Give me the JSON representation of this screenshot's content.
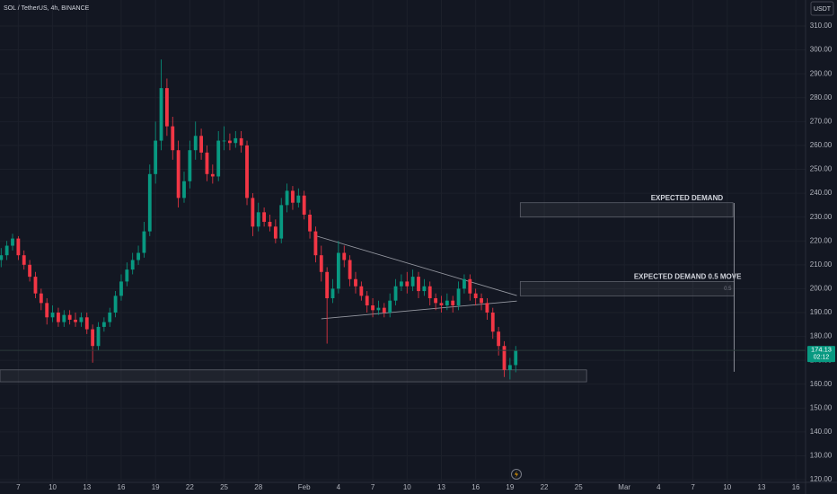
{
  "chart_data": {
    "type": "candlestick",
    "title": "SOL / TetherUS, 4h, BINANCE",
    "currency": "USDT",
    "countdown": "02:12",
    "up_color": "#089981",
    "down_color": "#f23645",
    "grid": true,
    "xlim": [
      5.4,
      75.85
    ],
    "ylim": [
      118.9,
      320.9
    ],
    "xticks": [
      {
        "value": 7,
        "label": "7"
      },
      {
        "value": 10,
        "label": "10"
      },
      {
        "value": 13,
        "label": "13"
      },
      {
        "value": 16,
        "label": "16"
      },
      {
        "value": 19,
        "label": "19"
      },
      {
        "value": 22,
        "label": "22"
      },
      {
        "value": 25,
        "label": "25"
      },
      {
        "value": 28,
        "label": "28"
      },
      {
        "value": 32,
        "label": "Feb"
      },
      {
        "value": 35,
        "label": "4"
      },
      {
        "value": 38,
        "label": "7"
      },
      {
        "value": 41,
        "label": "10"
      },
      {
        "value": 44,
        "label": "13"
      },
      {
        "value": 47,
        "label": "16"
      },
      {
        "value": 50,
        "label": "19"
      },
      {
        "value": 53,
        "label": "22"
      },
      {
        "value": 56,
        "label": "25"
      },
      {
        "value": 60,
        "label": "Mar"
      },
      {
        "value": 63,
        "label": "4"
      },
      {
        "value": 66,
        "label": "7"
      },
      {
        "value": 69,
        "label": "10"
      },
      {
        "value": 72,
        "label": "13"
      },
      {
        "value": 75,
        "label": "16"
      }
    ],
    "yticks": [
      {
        "value": 120,
        "label": "120.00"
      },
      {
        "value": 130,
        "label": "130.00"
      },
      {
        "value": 140,
        "label": "140.00"
      },
      {
        "value": 150,
        "label": "150.00"
      },
      {
        "value": 160,
        "label": "160.00"
      },
      {
        "value": 170,
        "label": "170.00"
      },
      {
        "value": 180,
        "label": "180.00"
      },
      {
        "value": 190,
        "label": "190.00"
      },
      {
        "value": 200,
        "label": "200.00"
      },
      {
        "value": 210,
        "label": "210.00"
      },
      {
        "value": 220,
        "label": "220.00"
      },
      {
        "value": 230,
        "label": "230.00"
      },
      {
        "value": 240,
        "label": "240.00"
      },
      {
        "value": 250,
        "label": "250.00"
      },
      {
        "value": 260,
        "label": "260.00"
      },
      {
        "value": 270,
        "label": "270.00"
      },
      {
        "value": 280,
        "label": "280.00"
      },
      {
        "value": 290,
        "label": "290.00"
      },
      {
        "value": 300,
        "label": "300.00"
      },
      {
        "value": 310,
        "label": "310.00"
      }
    ],
    "x": [
      5.5,
      6,
      6.5,
      7,
      7.5,
      8,
      8.5,
      9,
      9.5,
      10,
      10.5,
      11,
      11.5,
      12,
      12.5,
      13,
      13.5,
      14,
      14.5,
      15,
      15.5,
      16,
      16.5,
      17,
      17.5,
      18,
      18.5,
      19,
      19.5,
      20,
      20.5,
      21,
      21.5,
      22,
      22.5,
      23,
      23.5,
      24,
      24.5,
      25,
      25.5,
      26,
      26.5,
      27,
      27.5,
      28,
      28.5,
      29,
      29.5,
      30,
      30.5,
      31,
      31.5,
      32,
      32.5,
      33,
      33.5,
      34,
      34.5,
      35,
      35.5,
      36,
      36.5,
      37,
      37.5,
      38,
      38.5,
      39,
      39.5,
      40,
      40.5,
      41,
      41.5,
      42,
      42.5,
      43,
      43.5,
      44,
      44.5,
      45,
      45.5,
      46,
      46.5,
      47,
      47.5,
      48,
      48.5,
      49,
      49.5,
      50,
      50.5
    ],
    "open": [
      212,
      214,
      218,
      221,
      214,
      210,
      205,
      198,
      194,
      188,
      190,
      186,
      189,
      187,
      186,
      188,
      183,
      176,
      184,
      186,
      190,
      197,
      203,
      208,
      212,
      215,
      224,
      248,
      262,
      284,
      268,
      258,
      238,
      245,
      258,
      264,
      257,
      248,
      247,
      262,
      262,
      261,
      263,
      260,
      238,
      226,
      232,
      228,
      226,
      221,
      235,
      241,
      236,
      239,
      231,
      224,
      214,
      207,
      196,
      200,
      215,
      212,
      204,
      201,
      197,
      193,
      191,
      192,
      190,
      195,
      201,
      203,
      201,
      205,
      199,
      201,
      196,
      194,
      193,
      195,
      193,
      200,
      204,
      198,
      196,
      194,
      190,
      182,
      176,
      166,
      168
    ],
    "high": [
      217,
      220,
      223,
      222,
      216,
      212,
      207,
      200,
      196,
      193,
      192,
      191,
      191,
      190,
      190,
      190,
      185,
      186,
      188,
      192,
      199,
      206,
      211,
      215,
      218,
      228,
      252,
      270,
      296,
      288,
      272,
      262,
      249,
      262,
      270,
      267,
      260,
      252,
      266,
      268,
      265,
      266,
      266,
      262,
      240,
      236,
      234,
      231,
      229,
      238,
      244,
      243,
      242,
      241,
      233,
      226,
      218,
      209,
      204,
      220,
      218,
      214,
      207,
      203,
      199,
      196,
      195,
      194,
      198,
      204,
      206,
      207,
      208,
      207,
      204,
      203,
      198,
      197,
      198,
      197,
      203,
      206,
      206,
      200,
      198,
      196,
      192,
      184,
      178,
      171,
      176
    ],
    "low": [
      209,
      212,
      216,
      212,
      208,
      203,
      196,
      191,
      185,
      186,
      184,
      184,
      185,
      184,
      184,
      181,
      169,
      174,
      182,
      184,
      188,
      195,
      201,
      206,
      210,
      213,
      222,
      244,
      258,
      264,
      254,
      234,
      236,
      242,
      254,
      254,
      245,
      244,
      245,
      258,
      258,
      259,
      257,
      235,
      222,
      224,
      226,
      224,
      219,
      219,
      232,
      233,
      234,
      229,
      221,
      211,
      203,
      177,
      194,
      198,
      209,
      201,
      198,
      195,
      190,
      188,
      189,
      188,
      188,
      193,
      199,
      198,
      199,
      196,
      197,
      193,
      191,
      190,
      191,
      190,
      191,
      198,
      195,
      193,
      191,
      187,
      179,
      172,
      163,
      162,
      165
    ],
    "close": [
      214,
      218,
      221,
      214,
      210,
      205,
      198,
      194,
      188,
      190,
      186,
      189,
      187,
      186,
      188,
      183,
      176,
      184,
      186,
      190,
      197,
      203,
      208,
      212,
      215,
      224,
      248,
      262,
      284,
      268,
      258,
      238,
      245,
      258,
      264,
      257,
      248,
      247,
      262,
      262,
      261,
      263,
      260,
      238,
      226,
      232,
      228,
      226,
      221,
      235,
      241,
      236,
      239,
      231,
      224,
      214,
      207,
      196,
      200,
      215,
      212,
      204,
      201,
      197,
      193,
      191,
      192,
      190,
      195,
      201,
      203,
      201,
      205,
      199,
      201,
      196,
      194,
      193,
      195,
      193,
      200,
      204,
      198,
      196,
      194,
      190,
      182,
      176,
      166,
      168,
      174.13
    ],
    "zones": [
      {
        "label": "EXPECTED DEMAND",
        "xlim": [
          50.9,
          69.5
        ],
        "ylim": [
          230,
          236
        ]
      },
      {
        "label": "EXPECTED DEMAND 0.5 MOVE",
        "sublabel": "0.5",
        "xlim": [
          50.9,
          69.6
        ],
        "ylim": [
          197,
          203
        ]
      },
      {
        "xlim": [
          5.4,
          56.7
        ],
        "ylim": [
          161,
          166
        ]
      }
    ],
    "lines": [
      {
        "x": [
          32.9,
          50.6
        ],
        "y": [
          222.3,
          197.1
        ]
      },
      {
        "x": [
          33.5,
          50.6
        ],
        "y": [
          187.4,
          194.8
        ]
      },
      {
        "x": [
          69.6,
          69.6
        ],
        "y": [
          235.9,
          165.2
        ]
      }
    ]
  }
}
